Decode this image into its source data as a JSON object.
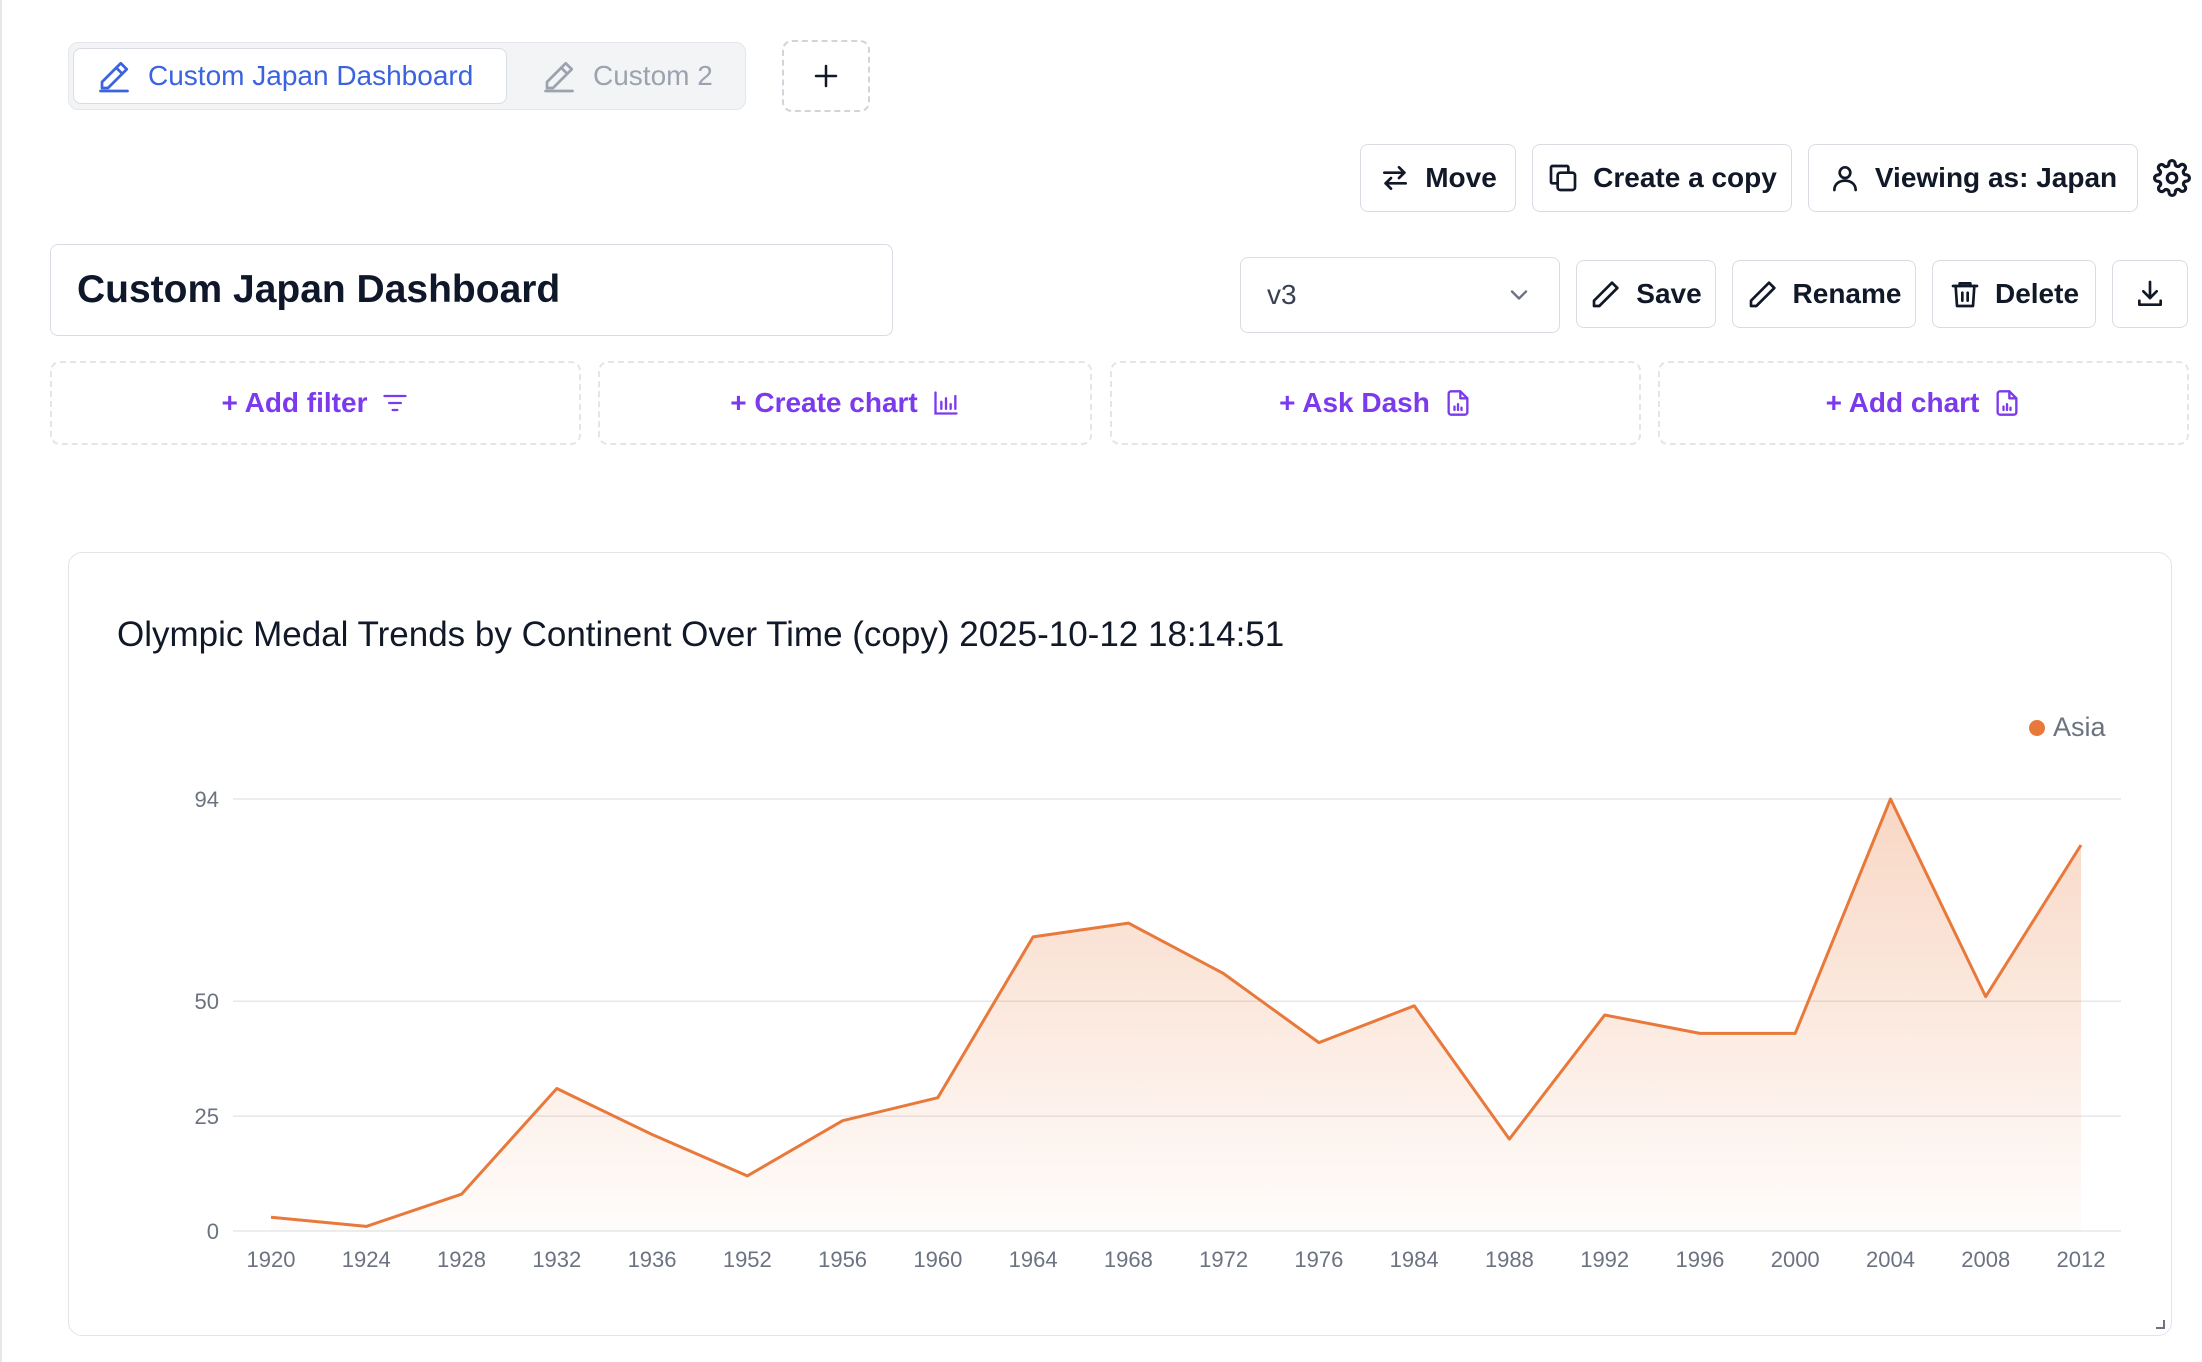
{
  "tabs": [
    {
      "label": "Custom Japan Dashboard",
      "active": true
    },
    {
      "label": "Custom 2",
      "active": false
    }
  ],
  "toolbar_top": {
    "move_label": "Move",
    "copy_label": "Create a copy",
    "viewing_label": "Viewing as: Japan"
  },
  "dashboard": {
    "title": "Custom Japan Dashboard",
    "version_selected": "v3",
    "save_label": "Save",
    "rename_label": "Rename",
    "delete_label": "Delete"
  },
  "actions": {
    "add_filter": "+ Add filter",
    "create_chart": "+ Create chart",
    "ask_dash": "+ Ask Dash",
    "add_chart": "+ Add chart"
  },
  "colors": {
    "accent_blue": "#3b63e0",
    "action_purple": "#7c3aed",
    "series_orange": "#e8793a"
  },
  "icons": {
    "tab": "pencil-icon",
    "move": "arrows-swap-icon",
    "copy": "copy-icon",
    "viewing": "user-icon",
    "settings": "gear-icon",
    "save": "pencil-icon",
    "rename": "pencil-icon",
    "delete": "trash-icon",
    "download": "download-icon"
  },
  "chart": {
    "title": "Olympic Medal Trends by Continent Over Time (copy) 2025-10-12 18:14:51"
  },
  "chart_data": {
    "type": "area",
    "title": "Olympic Medal Trends by Continent Over Time (copy) 2025-10-12 18:14:51",
    "xlabel": "",
    "ylabel": "",
    "categories": [
      "1920",
      "1924",
      "1928",
      "1932",
      "1936",
      "1952",
      "1956",
      "1960",
      "1964",
      "1968",
      "1972",
      "1976",
      "1984",
      "1988",
      "1992",
      "1996",
      "2000",
      "2004",
      "2008",
      "2012"
    ],
    "series": [
      {
        "name": "Asia",
        "values": [
          3,
          1,
          8,
          31,
          21,
          12,
          24,
          29,
          64,
          67,
          56,
          41,
          49,
          20,
          47,
          43,
          43,
          94,
          51,
          84
        ]
      }
    ],
    "yticks": [
      0,
      25,
      50,
      94
    ],
    "ylim": [
      0,
      94
    ],
    "grid": true,
    "legend_position": "top-right"
  }
}
